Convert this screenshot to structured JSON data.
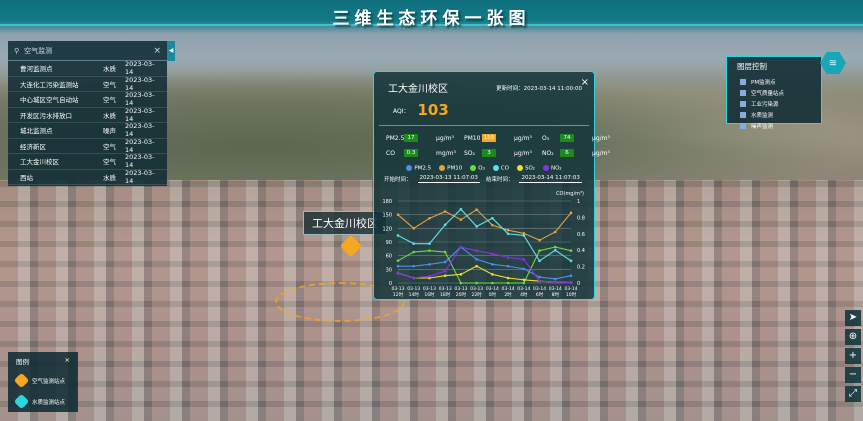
{
  "header": {
    "title": "三维生态环保一张图"
  },
  "search": {
    "placeholder": "空气监测",
    "close": "×",
    "toggle": "◀",
    "rows": [
      {
        "name": "曹河监测点",
        "type": "水质",
        "status": "2023-03-14"
      },
      {
        "name": "大连化工污染监测站",
        "type": "空气",
        "status": "2023-03-14"
      },
      {
        "name": "中心城区空气自动站",
        "type": "空气",
        "status": "2023-03-14"
      },
      {
        "name": "开发区污水排放口",
        "type": "水质",
        "status": "2023-03-14"
      },
      {
        "name": "城北监测点",
        "type": "噪声",
        "status": "2023-03-14"
      },
      {
        "name": "经济新区",
        "type": "空气",
        "status": "2023-03-14"
      },
      {
        "name": "工大金川校区",
        "type": "空气",
        "status": "2023-03-14"
      },
      {
        "name": "西站",
        "type": "水质",
        "status": "2023-03-14"
      }
    ]
  },
  "popup": {
    "name": "工大金川校区",
    "update_label": "更新时间：",
    "update_time": "2023-03-14 11:00:00",
    "close": "×",
    "aqi_label": "AQI：",
    "aqi": "103",
    "metrics": [
      {
        "label": "PM2.5",
        "value": "17",
        "unit": "μg/m³",
        "level": "good"
      },
      {
        "label": "PM10",
        "value": "155",
        "unit": "μg/m³",
        "level": "moderate"
      },
      {
        "label": "O₃",
        "value": "74",
        "unit": "μg/m³",
        "level": "good"
      },
      {
        "label": "CO",
        "value": "0.3",
        "unit": "mg/m³",
        "level": "good"
      },
      {
        "label": "SO₂",
        "value": "3",
        "unit": "μg/m³",
        "level": "good"
      },
      {
        "label": "NO₂",
        "value": "6",
        "unit": "μg/m³",
        "level": "good"
      }
    ],
    "start_label": "开始时间：",
    "start_time": "2023-03-13 11:07:03",
    "end_label": "结束时间：",
    "end_time": "2023-03-14 11:07:03"
  },
  "colors": {
    "good": "#1c8a1c",
    "moderate": "#f5a623",
    "accent": "#2bd6e0"
  },
  "chart_data": {
    "type": "line",
    "right_unit": "CO(mg/m³)",
    "categories": [
      "03-13 12时",
      "03-13 14时",
      "03-13 16时",
      "03-13 18时",
      "03-13 20时",
      "03-13 22时",
      "03-14 0时",
      "03-14 2时",
      "03-14 4时",
      "03-14 6时",
      "03-14 8时",
      "03-14 10时"
    ],
    "ylim_left": [
      0,
      180
    ],
    "yticks_left": [
      "0",
      "30",
      "60",
      "90",
      "120",
      "150",
      "180"
    ],
    "ylim_right": [
      0,
      1
    ],
    "yticks_right": [
      "0",
      "0.2",
      "0.4",
      "0.6",
      "0.8",
      "1"
    ],
    "legend_position": "top",
    "grid": true,
    "series": [
      {
        "name": "PM2.5",
        "color": "#4f8fe8",
        "axis": "left",
        "values": [
          37,
          37,
          41,
          46,
          79,
          52,
          41,
          37,
          31,
          13,
          9,
          16
        ]
      },
      {
        "name": "PM10",
        "color": "#e8a23a",
        "axis": "left",
        "values": [
          150,
          120,
          142,
          157,
          139,
          161,
          127,
          116,
          109,
          94,
          112,
          154
        ]
      },
      {
        "name": "O₃",
        "color": "#6bdc3a",
        "axis": "left",
        "values": [
          49,
          68,
          71,
          68,
          0,
          0,
          0,
          0,
          0,
          71,
          79,
          71
        ]
      },
      {
        "name": "CO",
        "color": "#5fe0ea",
        "axis": "right",
        "values": [
          0.58,
          0.48,
          0.48,
          0.71,
          0.9,
          0.69,
          0.79,
          0.6,
          0.58,
          0.27,
          0.4,
          0.27
        ]
      },
      {
        "name": "SO₂",
        "color": "#f0e020",
        "axis": "left",
        "values": [
          22,
          11,
          11,
          16,
          19,
          37,
          19,
          11,
          7,
          4,
          2,
          1
        ]
      },
      {
        "name": "NO₂",
        "color": "#8a30e8",
        "axis": "left",
        "values": [
          22,
          11,
          15,
          26,
          79,
          71,
          64,
          56,
          52,
          4,
          2,
          1
        ]
      }
    ]
  },
  "layers": {
    "title": "图层控制",
    "items": [
      "PM监测点",
      "空气质量站点",
      "工业污染源",
      "水质监测",
      "噪声监测"
    ]
  },
  "legend": {
    "title": "图例",
    "close": "×",
    "items": [
      {
        "label": "空气监测站点",
        "color": "#f5a623"
      },
      {
        "label": "水质监测站点",
        "color": "#2bd6e0"
      }
    ]
  },
  "marker": {
    "label": "工大金川校区"
  },
  "tools": [
    "➤",
    "⊕",
    "+",
    "−",
    "⤢"
  ]
}
